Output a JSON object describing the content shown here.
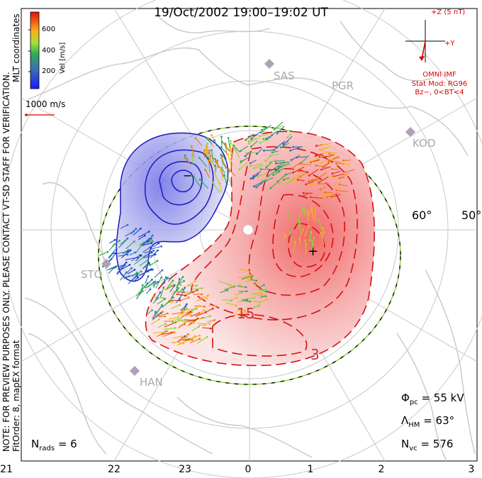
{
  "header": {
    "title": "19/Oct/2002 19:00–19:02 UT"
  },
  "imf": {
    "axis_z": "+Z (5 nT)",
    "axis_y": "+Y",
    "source": "OMNI IMF",
    "model": "Stat Mod: RG96",
    "condition": "Bz−, 0<BT<4",
    "colors": {
      "imf": "#dd0000"
    }
  },
  "colorbar": {
    "label": "Vel [m/s]",
    "ticks": [
      "600",
      "400",
      "200"
    ]
  },
  "velocity_scale": {
    "label": "1000 m/s"
  },
  "side_note": {
    "line1": "NOTE: FOR PREVIEW PURPOSES ONLY. PLEASE CONTACT VT-SD STAFF FOR VERIFICATION.",
    "line2": "MLT coordinates",
    "line3": "FitOrder: 8, mapEX format"
  },
  "stations": [
    "SAS",
    "PGR",
    "KOD",
    "STO",
    "HAN"
  ],
  "latitude_labels": [
    "60°",
    "50°"
  ],
  "contour_labels": [
    "15",
    "3"
  ],
  "stats": {
    "phi_pc": {
      "symbol": "Φ",
      "sub": "pc",
      "value": "= 55 kV"
    },
    "lambda_hm": {
      "symbol": "Λ",
      "sub": "HM",
      "value": "= 63°"
    },
    "n_vc": {
      "symbol": "N",
      "sub": "vc",
      "value": "= 576"
    },
    "n_rads": {
      "symbol": "N",
      "sub": "rads",
      "value": "= 6"
    }
  },
  "mlt_ticks": [
    "21",
    "22",
    "23",
    "0",
    "1",
    "2",
    "3"
  ]
}
